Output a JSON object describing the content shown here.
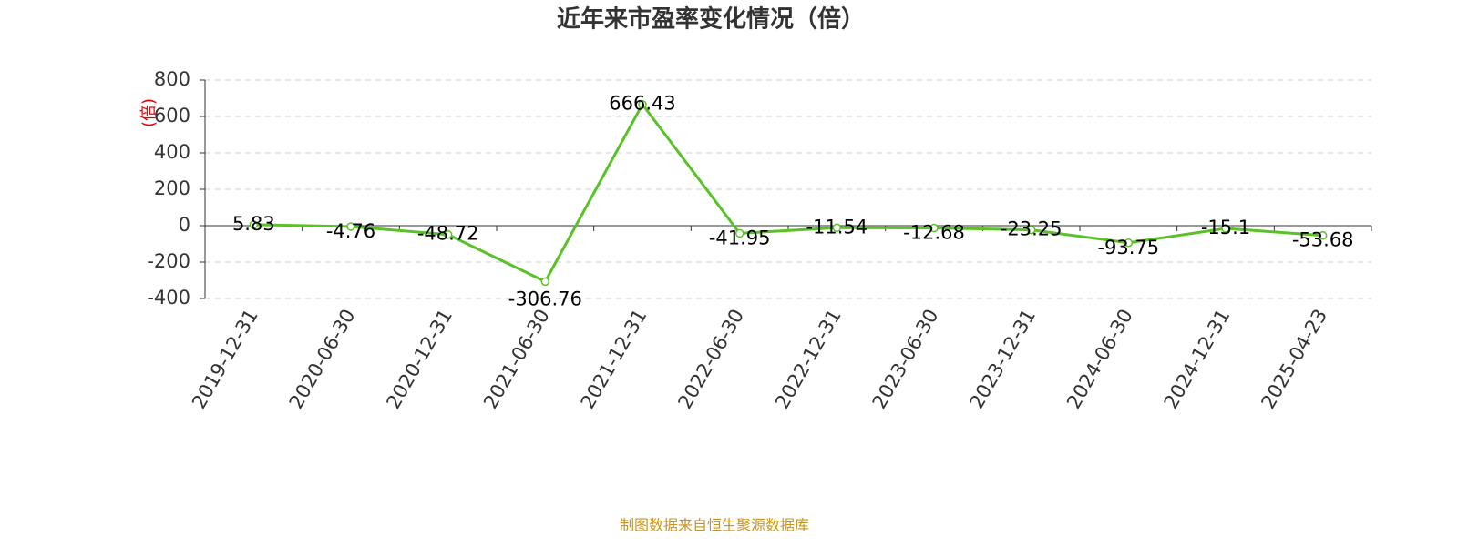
{
  "chart_data": {
    "type": "line",
    "title": "近年来市盈率变化情况（倍）",
    "y_label": "(倍)",
    "categories": [
      "2019-12-31",
      "2020-06-30",
      "2020-12-31",
      "2021-06-30",
      "2021-12-31",
      "2022-06-30",
      "2022-12-31",
      "2023-06-30",
      "2023-12-31",
      "2024-06-30",
      "2024-12-31",
      "2025-04-23"
    ],
    "values": [
      5.83,
      -4.76,
      -48.72,
      -306.76,
      666.43,
      -41.95,
      -11.54,
      -12.68,
      -23.25,
      -93.75,
      -15.1,
      -53.68
    ],
    "color": "#5ac228",
    "ylim": [
      -400,
      800
    ],
    "yticks": [
      -400,
      -200,
      0,
      200,
      400,
      600,
      800
    ],
    "grid": true,
    "source": "制图数据来自恒生聚源数据库"
  }
}
